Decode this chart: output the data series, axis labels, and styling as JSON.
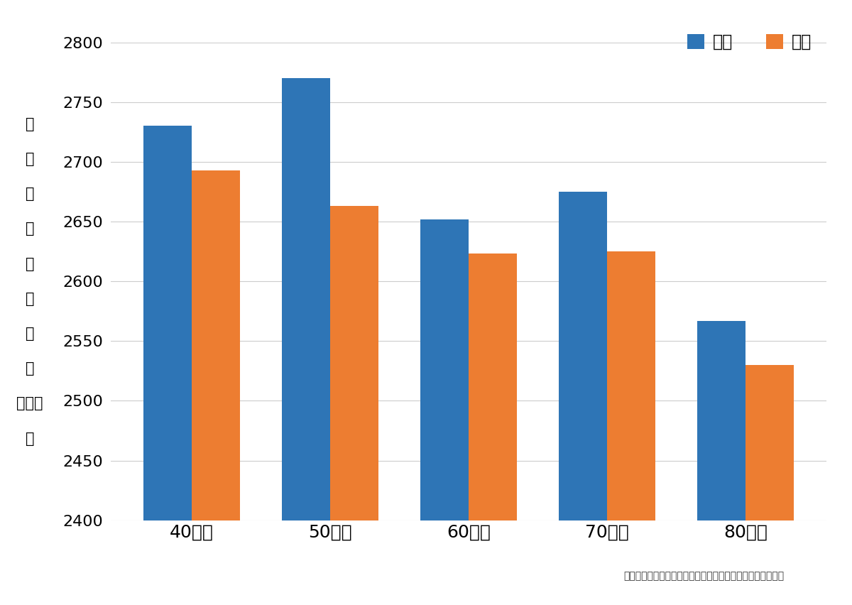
{
  "categories": [
    "40才代",
    "50才代",
    "60才代",
    "70才代",
    "80才代"
  ],
  "male_values": [
    2730,
    2770,
    2652,
    2675,
    2567
  ],
  "female_values": [
    2693,
    2663,
    2623,
    2625,
    2530
  ],
  "male_color": "#2E75B6",
  "female_color": "#ED7D31",
  "ylim_min": 2400,
  "ylim_max": 2800,
  "yticks": [
    2400,
    2450,
    2500,
    2550,
    2600,
    2650,
    2700,
    2750,
    2800
  ],
  "ylabel_chars": [
    "【",
    "黒",
    "目",
    "の",
    "細",
    "胞",
    "の",
    "数",
    "（注）",
    "】"
  ],
  "legend_male": "男性",
  "legend_female": "女性",
  "footnote": "（注）黒目の細胞とは、「角膜内皮細胞」のことをいいます",
  "bar_width": 0.35,
  "background_color": "#FFFFFF",
  "grid_color": "#CCCCCC"
}
